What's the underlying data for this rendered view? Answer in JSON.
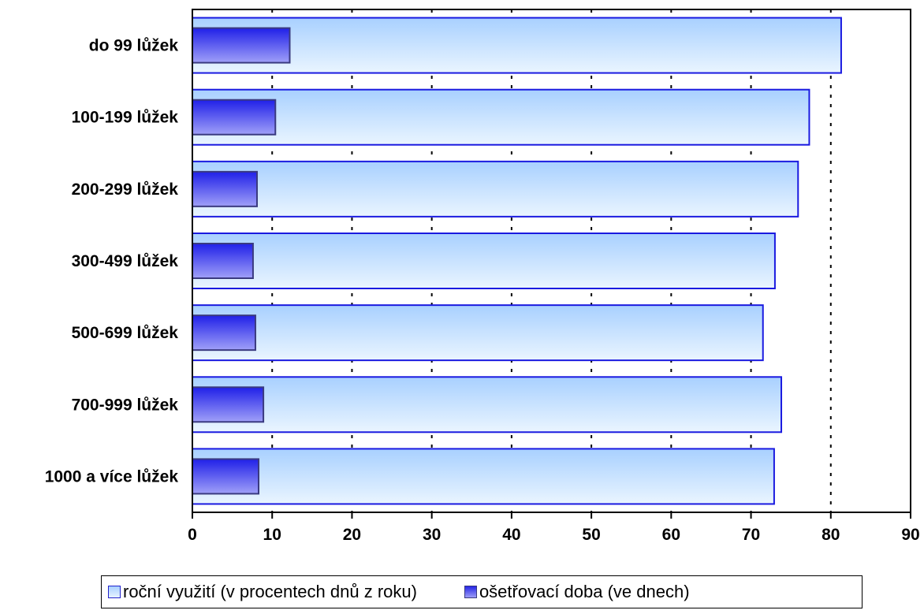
{
  "chart_data": {
    "type": "bar",
    "orientation": "horizontal",
    "categories": [
      "do 99 lůžek",
      "100-199 lůžek",
      "200-299 lůžek",
      "300-499 lůžek",
      "500-699 lůžek",
      "700-999 lůžek",
      "1000 a více lůžek"
    ],
    "series": [
      {
        "name": "roční využití (v procentech dnů z roku)",
        "values": [
          81.3,
          77.3,
          75.9,
          73.0,
          71.5,
          73.8,
          72.9
        ]
      },
      {
        "name": "ošetřovací doba (ve dnech)",
        "values": [
          12.2,
          10.4,
          8.1,
          7.6,
          7.9,
          8.9,
          8.3
        ]
      }
    ],
    "xlim": [
      0,
      90
    ],
    "xticks": [
      "0",
      "10",
      "20",
      "30",
      "40",
      "50",
      "60",
      "70",
      "80",
      "90"
    ],
    "grid": "vertical dotted",
    "legend_position": "bottom",
    "colors": {
      "series1_fill_top": "#a8d0ff",
      "series1_fill_bottom": "#eaf5ff",
      "series1_border": "#1a1ae0",
      "series2_fill_top": "#2020e8",
      "series2_fill_bottom": "#a0a0f8",
      "series2_border": "#3a3a80"
    }
  },
  "legend": {
    "item1": "roční využití (v procentech dnů z roku)",
    "item2": "ošetřovací doba (ve dnech)"
  }
}
